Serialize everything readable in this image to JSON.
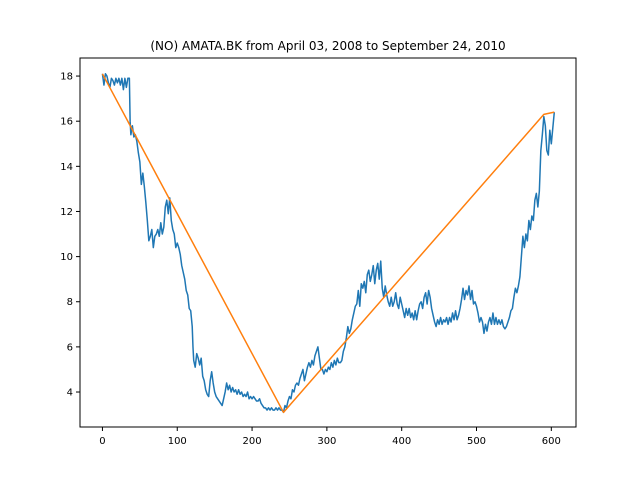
{
  "chart_data": {
    "type": "line",
    "title": "(NO) AMATA.BK from April 03, 2008 to September 24, 2010",
    "xlabel": "",
    "ylabel": "",
    "xlim": [
      -30,
      633
    ],
    "ylim": [
      2.45,
      18.8
    ],
    "xticks": [
      0,
      100,
      200,
      300,
      400,
      500,
      600
    ],
    "yticks": [
      4,
      6,
      8,
      10,
      12,
      14,
      16,
      18
    ],
    "grid": false,
    "legend": "none",
    "series": [
      {
        "color": "#1f77b4",
        "points": [
          [
            0,
            18.1
          ],
          [
            2,
            17.6
          ],
          [
            4,
            18.1
          ],
          [
            6,
            18.0
          ],
          [
            8,
            17.7
          ],
          [
            10,
            17.5
          ],
          [
            12,
            17.9
          ],
          [
            14,
            17.8
          ],
          [
            16,
            17.6
          ],
          [
            18,
            17.9
          ],
          [
            20,
            17.7
          ],
          [
            22,
            17.9
          ],
          [
            24,
            17.6
          ],
          [
            26,
            17.9
          ],
          [
            28,
            17.4
          ],
          [
            30,
            17.9
          ],
          [
            32,
            17.5
          ],
          [
            34,
            17.9
          ],
          [
            36,
            17.9
          ],
          [
            37,
            16.0
          ],
          [
            38,
            15.4
          ],
          [
            40,
            15.8
          ],
          [
            42,
            15.3
          ],
          [
            44,
            15.4
          ],
          [
            46,
            15.1
          ],
          [
            48,
            14.6
          ],
          [
            50,
            14.2
          ],
          [
            52,
            13.2
          ],
          [
            54,
            13.7
          ],
          [
            56,
            13.1
          ],
          [
            58,
            12.4
          ],
          [
            60,
            11.6
          ],
          [
            62,
            10.7
          ],
          [
            64,
            10.9
          ],
          [
            66,
            11.2
          ],
          [
            68,
            10.4
          ],
          [
            70,
            10.9
          ],
          [
            72,
            11.0
          ],
          [
            74,
            11.2
          ],
          [
            76,
            10.9
          ],
          [
            78,
            11.5
          ],
          [
            80,
            11.0
          ],
          [
            82,
            11.3
          ],
          [
            84,
            12.2
          ],
          [
            86,
            12.5
          ],
          [
            88,
            11.9
          ],
          [
            90,
            12.6
          ],
          [
            92,
            11.6
          ],
          [
            94,
            11.2
          ],
          [
            96,
            11.0
          ],
          [
            98,
            10.4
          ],
          [
            100,
            10.6
          ],
          [
            102,
            10.4
          ],
          [
            104,
            10.1
          ],
          [
            106,
            9.6
          ],
          [
            108,
            9.3
          ],
          [
            110,
            9.0
          ],
          [
            112,
            8.5
          ],
          [
            114,
            8.3
          ],
          [
            116,
            7.7
          ],
          [
            118,
            7.6
          ],
          [
            120,
            6.9
          ],
          [
            121,
            6.0
          ],
          [
            122,
            5.4
          ],
          [
            124,
            5.1
          ],
          [
            126,
            5.7
          ],
          [
            128,
            5.5
          ],
          [
            130,
            5.2
          ],
          [
            132,
            5.5
          ],
          [
            134,
            4.7
          ],
          [
            136,
            4.5
          ],
          [
            138,
            4.1
          ],
          [
            140,
            3.9
          ],
          [
            142,
            3.8
          ],
          [
            144,
            4.5
          ],
          [
            146,
            4.9
          ],
          [
            148,
            4.4
          ],
          [
            150,
            4.0
          ],
          [
            152,
            3.8
          ],
          [
            154,
            3.7
          ],
          [
            156,
            3.6
          ],
          [
            158,
            3.5
          ],
          [
            160,
            3.4
          ],
          [
            162,
            3.7
          ],
          [
            164,
            4.0
          ],
          [
            166,
            4.4
          ],
          [
            168,
            4.1
          ],
          [
            170,
            4.3
          ],
          [
            172,
            4.0
          ],
          [
            174,
            4.2
          ],
          [
            176,
            4.0
          ],
          [
            178,
            4.1
          ],
          [
            180,
            3.9
          ],
          [
            182,
            4.1
          ],
          [
            184,
            3.9
          ],
          [
            186,
            4.0
          ],
          [
            188,
            3.8
          ],
          [
            190,
            3.9
          ],
          [
            192,
            3.8
          ],
          [
            194,
            4.0
          ],
          [
            196,
            3.7
          ],
          [
            198,
            3.8
          ],
          [
            200,
            3.7
          ],
          [
            202,
            3.8
          ],
          [
            204,
            3.7
          ],
          [
            206,
            3.6
          ],
          [
            208,
            3.6
          ],
          [
            210,
            3.7
          ],
          [
            212,
            3.5
          ],
          [
            214,
            3.4
          ],
          [
            216,
            3.3
          ],
          [
            218,
            3.3
          ],
          [
            220,
            3.2
          ],
          [
            222,
            3.3
          ],
          [
            224,
            3.2
          ],
          [
            226,
            3.3
          ],
          [
            228,
            3.2
          ],
          [
            230,
            3.2
          ],
          [
            232,
            3.3
          ],
          [
            234,
            3.2
          ],
          [
            236,
            3.3
          ],
          [
            238,
            3.2
          ],
          [
            240,
            3.2
          ],
          [
            242,
            3.1
          ],
          [
            244,
            3.4
          ],
          [
            246,
            3.3
          ],
          [
            248,
            3.6
          ],
          [
            250,
            3.8
          ],
          [
            252,
            3.7
          ],
          [
            254,
            4.1
          ],
          [
            256,
            4.0
          ],
          [
            258,
            4.3
          ],
          [
            260,
            4.4
          ],
          [
            262,
            4.3
          ],
          [
            264,
            4.6
          ],
          [
            266,
            4.8
          ],
          [
            268,
            5.0
          ],
          [
            270,
            4.5
          ],
          [
            272,
            4.8
          ],
          [
            274,
            5.1
          ],
          [
            276,
            5.3
          ],
          [
            278,
            5.1
          ],
          [
            280,
            5.4
          ],
          [
            282,
            5.2
          ],
          [
            284,
            5.6
          ],
          [
            286,
            5.8
          ],
          [
            288,
            6.0
          ],
          [
            290,
            5.5
          ],
          [
            292,
            5.0
          ],
          [
            294,
            5.0
          ],
          [
            296,
            4.8
          ],
          [
            298,
            5.0
          ],
          [
            300,
            4.9
          ],
          [
            302,
            5.1
          ],
          [
            304,
            5.0
          ],
          [
            306,
            5.3
          ],
          [
            308,
            5.1
          ],
          [
            310,
            5.4
          ],
          [
            312,
            5.2
          ],
          [
            314,
            5.5
          ],
          [
            316,
            5.3
          ],
          [
            318,
            5.3
          ],
          [
            320,
            5.4
          ],
          [
            322,
            5.8
          ],
          [
            324,
            6.0
          ],
          [
            326,
            6.4
          ],
          [
            328,
            6.9
          ],
          [
            330,
            6.6
          ],
          [
            332,
            6.8
          ],
          [
            334,
            7.2
          ],
          [
            336,
            7.5
          ],
          [
            338,
            7.8
          ],
          [
            340,
            7.9
          ],
          [
            342,
            8.5
          ],
          [
            344,
            7.8
          ],
          [
            346,
            8.8
          ],
          [
            348,
            8.6
          ],
          [
            350,
            8.9
          ],
          [
            352,
            8.4
          ],
          [
            354,
            9.2
          ],
          [
            356,
            9.4
          ],
          [
            358,
            8.9
          ],
          [
            360,
            9.2
          ],
          [
            362,
            9.6
          ],
          [
            364,
            8.8
          ],
          [
            366,
            9.4
          ],
          [
            368,
            9.7
          ],
          [
            370,
            9.0
          ],
          [
            372,
            9.8
          ],
          [
            374,
            8.6
          ],
          [
            376,
            8.2
          ],
          [
            378,
            8.7
          ],
          [
            380,
            8.3
          ],
          [
            382,
            8.0
          ],
          [
            384,
            7.8
          ],
          [
            386,
            8.2
          ],
          [
            388,
            7.8
          ],
          [
            390,
            8.0
          ],
          [
            392,
            8.4
          ],
          [
            394,
            7.9
          ],
          [
            396,
            7.7
          ],
          [
            398,
            8.2
          ],
          [
            400,
            7.9
          ],
          [
            402,
            7.6
          ],
          [
            404,
            7.3
          ],
          [
            406,
            7.7
          ],
          [
            408,
            7.4
          ],
          [
            410,
            7.7
          ],
          [
            412,
            7.3
          ],
          [
            414,
            7.5
          ],
          [
            416,
            7.2
          ],
          [
            418,
            7.6
          ],
          [
            420,
            7.2
          ],
          [
            422,
            7.6
          ],
          [
            424,
            7.9
          ],
          [
            426,
            8.0
          ],
          [
            428,
            7.7
          ],
          [
            430,
            8.2
          ],
          [
            432,
            8.4
          ],
          [
            434,
            7.9
          ],
          [
            436,
            8.5
          ],
          [
            438,
            8.2
          ],
          [
            440,
            7.7
          ],
          [
            442,
            7.4
          ],
          [
            444,
            7.1
          ],
          [
            446,
            6.9
          ],
          [
            448,
            7.2
          ],
          [
            450,
            7.0
          ],
          [
            452,
            7.3
          ],
          [
            454,
            7.0
          ],
          [
            456,
            7.2
          ],
          [
            458,
            7.1
          ],
          [
            460,
            7.3
          ],
          [
            462,
            7.0
          ],
          [
            464,
            7.3
          ],
          [
            466,
            7.1
          ],
          [
            468,
            7.5
          ],
          [
            470,
            7.2
          ],
          [
            472,
            7.6
          ],
          [
            474,
            7.2
          ],
          [
            476,
            7.4
          ],
          [
            478,
            7.7
          ],
          [
            480,
            8.1
          ],
          [
            482,
            8.6
          ],
          [
            484,
            8.1
          ],
          [
            486,
            8.5
          ],
          [
            488,
            8.3
          ],
          [
            490,
            8.7
          ],
          [
            492,
            8.1
          ],
          [
            494,
            8.5
          ],
          [
            496,
            7.9
          ],
          [
            498,
            8.0
          ],
          [
            500,
            7.8
          ],
          [
            502,
            7.5
          ],
          [
            504,
            7.1
          ],
          [
            506,
            7.3
          ],
          [
            508,
            7.1
          ],
          [
            510,
            6.6
          ],
          [
            512,
            7.0
          ],
          [
            514,
            6.7
          ],
          [
            516,
            7.1
          ],
          [
            518,
            7.3
          ],
          [
            520,
            7.0
          ],
          [
            522,
            7.5
          ],
          [
            524,
            7.0
          ],
          [
            526,
            7.3
          ],
          [
            528,
            7.0
          ],
          [
            530,
            7.2
          ],
          [
            532,
            7.0
          ],
          [
            534,
            7.2
          ],
          [
            536,
            6.9
          ],
          [
            538,
            6.8
          ],
          [
            540,
            6.9
          ],
          [
            542,
            7.1
          ],
          [
            544,
            7.3
          ],
          [
            546,
            7.6
          ],
          [
            548,
            7.7
          ],
          [
            550,
            8.2
          ],
          [
            552,
            8.6
          ],
          [
            554,
            8.4
          ],
          [
            556,
            8.7
          ],
          [
            558,
            9.1
          ],
          [
            560,
            10.0
          ],
          [
            562,
            10.9
          ],
          [
            564,
            10.4
          ],
          [
            566,
            11.0
          ],
          [
            568,
            10.7
          ],
          [
            570,
            11.6
          ],
          [
            572,
            11.2
          ],
          [
            574,
            11.8
          ],
          [
            576,
            11.6
          ],
          [
            578,
            12.5
          ],
          [
            580,
            12.8
          ],
          [
            582,
            12.2
          ],
          [
            584,
            12.9
          ],
          [
            586,
            14.7
          ],
          [
            588,
            15.4
          ],
          [
            590,
            16.2
          ],
          [
            592,
            15.8
          ],
          [
            594,
            14.7
          ],
          [
            596,
            14.5
          ],
          [
            598,
            15.6
          ],
          [
            600,
            15.0
          ],
          [
            602,
            15.7
          ],
          [
            604,
            16.4
          ]
        ]
      },
      {
        "color": "#ff7f0e",
        "points": [
          [
            0,
            18.1
          ],
          [
            242,
            3.1
          ],
          [
            590,
            16.3
          ],
          [
            604,
            16.4
          ]
        ]
      }
    ]
  }
}
